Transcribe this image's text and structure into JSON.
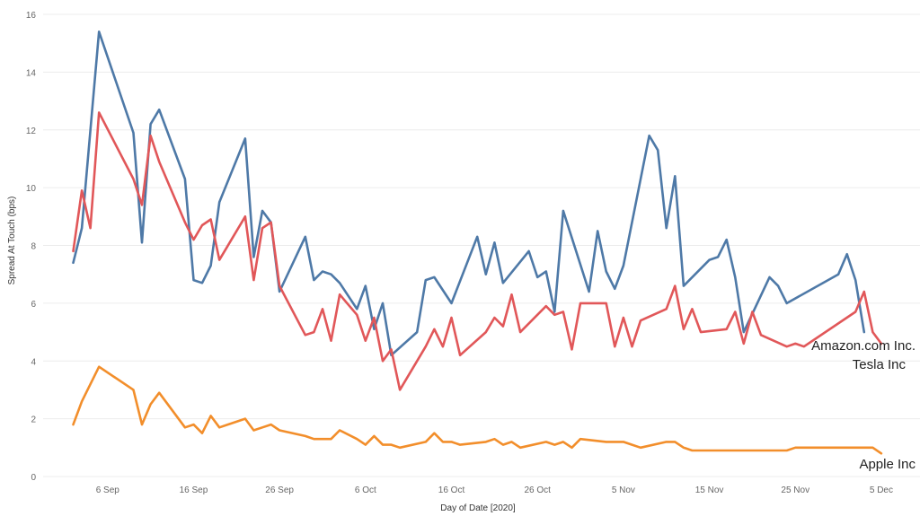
{
  "chart_data": {
    "type": "line",
    "title": "",
    "xlabel": "Day of Date [2020]",
    "ylabel": "Spread At Touch (bps)",
    "ylim": [
      0,
      16
    ],
    "grid": true,
    "y_ticks": [
      0,
      2,
      4,
      6,
      8,
      10,
      12,
      14,
      16
    ],
    "x_ticks": [
      {
        "day": 6,
        "label": "6 Sep"
      },
      {
        "day": 16,
        "label": "16 Sep"
      },
      {
        "day": 26,
        "label": "26 Sep"
      },
      {
        "day": 36,
        "label": "6 Oct"
      },
      {
        "day": 46,
        "label": "16 Oct"
      },
      {
        "day": 56,
        "label": "26 Oct"
      },
      {
        "day": 66,
        "label": "5 Nov"
      },
      {
        "day": 76,
        "label": "15 Nov"
      },
      {
        "day": 86,
        "label": "25 Nov"
      },
      {
        "day": 96,
        "label": "5 Dec"
      }
    ],
    "x_range_days": [
      -1.5,
      100.5
    ],
    "x_day_origin": "1 Sep 2020 = day 1",
    "series": [
      {
        "name": "Amazon.com Inc.",
        "color": "#4e79a7",
        "points": [
          [
            2,
            7.4
          ],
          [
            3,
            8.6
          ],
          [
            5,
            15.4
          ],
          [
            9,
            11.9
          ],
          [
            10,
            8.1
          ],
          [
            11,
            12.2
          ],
          [
            12,
            12.7
          ],
          [
            15,
            10.3
          ],
          [
            16,
            6.8
          ],
          [
            17,
            6.7
          ],
          [
            18,
            7.3
          ],
          [
            19,
            9.5
          ],
          [
            22,
            11.7
          ],
          [
            23,
            7.6
          ],
          [
            24,
            9.2
          ],
          [
            25,
            8.8
          ],
          [
            26,
            6.4
          ],
          [
            29,
            8.3
          ],
          [
            30,
            6.8
          ],
          [
            31,
            7.1
          ],
          [
            32,
            7.0
          ],
          [
            33,
            6.7
          ],
          [
            35,
            5.8
          ],
          [
            36,
            6.6
          ],
          [
            37,
            5.1
          ],
          [
            38,
            6.0
          ],
          [
            39,
            4.2
          ],
          [
            42,
            5.0
          ],
          [
            43,
            6.8
          ],
          [
            44,
            6.9
          ],
          [
            46,
            6.0
          ],
          [
            49,
            8.3
          ],
          [
            50,
            7.0
          ],
          [
            51,
            8.1
          ],
          [
            52,
            6.7
          ],
          [
            55,
            7.8
          ],
          [
            56,
            6.9
          ],
          [
            57,
            7.1
          ],
          [
            58,
            5.7
          ],
          [
            59,
            9.2
          ],
          [
            62,
            6.4
          ],
          [
            63,
            8.5
          ],
          [
            64,
            7.1
          ],
          [
            65,
            6.5
          ],
          [
            66,
            7.3
          ],
          [
            69,
            11.8
          ],
          [
            70,
            11.3
          ],
          [
            71,
            8.6
          ],
          [
            72,
            10.4
          ],
          [
            73,
            6.6
          ],
          [
            76,
            7.5
          ],
          [
            77,
            7.6
          ],
          [
            78,
            8.2
          ],
          [
            79,
            6.9
          ],
          [
            80,
            5.0
          ],
          [
            83,
            6.9
          ],
          [
            84,
            6.6
          ],
          [
            85,
            6.0
          ],
          [
            91,
            7.0
          ],
          [
            92,
            7.7
          ],
          [
            93,
            6.8
          ],
          [
            94,
            5.0
          ]
        ]
      },
      {
        "name": "Tesla Inc",
        "color": "#e15759",
        "points": [
          [
            2,
            7.8
          ],
          [
            3,
            9.9
          ],
          [
            4,
            8.6
          ],
          [
            5,
            12.6
          ],
          [
            9,
            10.3
          ],
          [
            10,
            9.4
          ],
          [
            11,
            11.8
          ],
          [
            12,
            10.9
          ],
          [
            15,
            8.8
          ],
          [
            16,
            8.2
          ],
          [
            17,
            8.7
          ],
          [
            18,
            8.9
          ],
          [
            19,
            7.5
          ],
          [
            22,
            9.0
          ],
          [
            23,
            6.8
          ],
          [
            24,
            8.6
          ],
          [
            25,
            8.8
          ],
          [
            26,
            6.6
          ],
          [
            29,
            4.9
          ],
          [
            30,
            5.0
          ],
          [
            31,
            5.8
          ],
          [
            32,
            4.7
          ],
          [
            33,
            6.3
          ],
          [
            35,
            5.6
          ],
          [
            36,
            4.7
          ],
          [
            37,
            5.5
          ],
          [
            38,
            4.0
          ],
          [
            39,
            4.4
          ],
          [
            40,
            3.0
          ],
          [
            43,
            4.5
          ],
          [
            44,
            5.1
          ],
          [
            45,
            4.5
          ],
          [
            46,
            5.5
          ],
          [
            47,
            4.2
          ],
          [
            50,
            5.0
          ],
          [
            51,
            5.5
          ],
          [
            52,
            5.2
          ],
          [
            53,
            6.3
          ],
          [
            54,
            5.0
          ],
          [
            57,
            5.9
          ],
          [
            58,
            5.6
          ],
          [
            59,
            5.7
          ],
          [
            60,
            4.4
          ],
          [
            61,
            6.0
          ],
          [
            64,
            6.0
          ],
          [
            65,
            4.5
          ],
          [
            66,
            5.5
          ],
          [
            67,
            4.5
          ],
          [
            68,
            5.4
          ],
          [
            71,
            5.8
          ],
          [
            72,
            6.6
          ],
          [
            73,
            5.1
          ],
          [
            74,
            5.8
          ],
          [
            75,
            5.0
          ],
          [
            78,
            5.1
          ],
          [
            79,
            5.7
          ],
          [
            80,
            4.6
          ],
          [
            81,
            5.7
          ],
          [
            82,
            4.9
          ],
          [
            85,
            4.5
          ],
          [
            86,
            4.6
          ],
          [
            87,
            4.5
          ],
          [
            93,
            5.7
          ],
          [
            94,
            6.4
          ],
          [
            95,
            5.0
          ],
          [
            96,
            4.6
          ]
        ]
      },
      {
        "name": "Apple Inc",
        "color": "#f28e2b",
        "points": [
          [
            2,
            1.8
          ],
          [
            3,
            2.6
          ],
          [
            5,
            3.8
          ],
          [
            9,
            3.0
          ],
          [
            10,
            1.8
          ],
          [
            11,
            2.5
          ],
          [
            12,
            2.9
          ],
          [
            15,
            1.7
          ],
          [
            16,
            1.8
          ],
          [
            17,
            1.5
          ],
          [
            18,
            2.1
          ],
          [
            19,
            1.7
          ],
          [
            22,
            2.0
          ],
          [
            23,
            1.6
          ],
          [
            24,
            1.7
          ],
          [
            25,
            1.8
          ],
          [
            26,
            1.6
          ],
          [
            29,
            1.4
          ],
          [
            30,
            1.3
          ],
          [
            31,
            1.3
          ],
          [
            32,
            1.3
          ],
          [
            33,
            1.6
          ],
          [
            35,
            1.3
          ],
          [
            36,
            1.1
          ],
          [
            37,
            1.4
          ],
          [
            38,
            1.1
          ],
          [
            39,
            1.1
          ],
          [
            40,
            1.0
          ],
          [
            43,
            1.2
          ],
          [
            44,
            1.5
          ],
          [
            45,
            1.2
          ],
          [
            46,
            1.2
          ],
          [
            47,
            1.1
          ],
          [
            50,
            1.2
          ],
          [
            51,
            1.3
          ],
          [
            52,
            1.1
          ],
          [
            53,
            1.2
          ],
          [
            54,
            1.0
          ],
          [
            57,
            1.2
          ],
          [
            58,
            1.1
          ],
          [
            59,
            1.2
          ],
          [
            60,
            1.0
          ],
          [
            61,
            1.3
          ],
          [
            64,
            1.2
          ],
          [
            65,
            1.2
          ],
          [
            66,
            1.2
          ],
          [
            67,
            1.1
          ],
          [
            68,
            1.0
          ],
          [
            71,
            1.2
          ],
          [
            72,
            1.2
          ],
          [
            73,
            1.0
          ],
          [
            74,
            0.9
          ],
          [
            75,
            0.9
          ],
          [
            78,
            0.9
          ],
          [
            79,
            0.9
          ],
          [
            80,
            0.9
          ],
          [
            81,
            0.9
          ],
          [
            82,
            0.9
          ],
          [
            85,
            0.9
          ],
          [
            86,
            1.0
          ],
          [
            87,
            1.0
          ],
          [
            93,
            1.0
          ],
          [
            94,
            1.0
          ],
          [
            95,
            1.0
          ],
          [
            96,
            0.8
          ]
        ]
      }
    ]
  }
}
